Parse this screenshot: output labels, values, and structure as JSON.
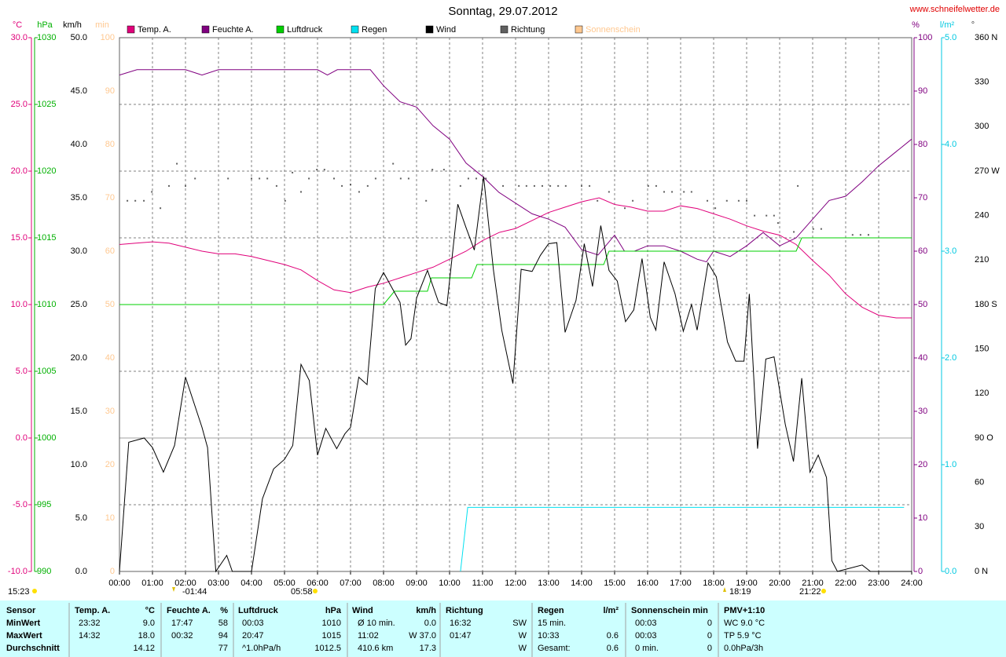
{
  "chart_data": {
    "type": "line",
    "title": "Sonntag, 29.07.2012",
    "source": "www.schneifelwetter.de",
    "xlim": [
      0,
      24
    ],
    "xticks": [
      {
        "value": 0,
        "label": "00:00"
      },
      {
        "value": 1,
        "label": "01:00"
      },
      {
        "value": 2,
        "label": "02:00"
      },
      {
        "value": 3,
        "label": "03:00"
      },
      {
        "value": 4,
        "label": "04:00"
      },
      {
        "value": 5,
        "label": "05:00"
      },
      {
        "value": 6,
        "label": "06:00"
      },
      {
        "value": 7,
        "label": "07:00"
      },
      {
        "value": 8,
        "label": "08:00"
      },
      {
        "value": 9,
        "label": "09:00"
      },
      {
        "value": 10,
        "label": "10:00"
      },
      {
        "value": 11,
        "label": "11:00"
      },
      {
        "value": 12,
        "label": "12:00"
      },
      {
        "value": 13,
        "label": "13:00"
      },
      {
        "value": 14,
        "label": "14:00"
      },
      {
        "value": 15,
        "label": "15:00"
      },
      {
        "value": 16,
        "label": "16:00"
      },
      {
        "value": 17,
        "label": "17:00"
      },
      {
        "value": 18,
        "label": "18:00"
      },
      {
        "value": 19,
        "label": "19:00"
      },
      {
        "value": 20,
        "label": "20:00"
      },
      {
        "value": 21,
        "label": "21:00"
      },
      {
        "value": 22,
        "label": "22:00"
      },
      {
        "value": 23,
        "label": "23:00"
      },
      {
        "value": 24,
        "label": "24:00"
      }
    ],
    "grid": true,
    "axes": [
      {
        "unit": "°C",
        "color": "#e0007a",
        "lim": [
          -10,
          30
        ],
        "ticks": [
          {
            "value": -10,
            "label": "-10.0"
          },
          {
            "value": -5,
            "label": "-5.0"
          },
          {
            "value": 0,
            "label": "0.0"
          },
          {
            "value": 5,
            "label": "5.0"
          },
          {
            "value": 10,
            "label": "10.0"
          },
          {
            "value": 15,
            "label": "15.0"
          },
          {
            "value": 20,
            "label": "20.0"
          },
          {
            "value": 25,
            "label": "25.0"
          },
          {
            "value": 30,
            "label": "30.0"
          }
        ]
      },
      {
        "unit": "hPa",
        "color": "#00b000",
        "lim": [
          990,
          1030
        ],
        "ticks": [
          990,
          995,
          1000,
          1005,
          1010,
          1015,
          1020,
          1025,
          1030
        ]
      },
      {
        "unit": "km/h",
        "color": "#000000",
        "lim": [
          0,
          50
        ],
        "ticks": [
          {
            "value": 0,
            "label": "0.0"
          },
          {
            "value": 5,
            "label": "5.0"
          },
          {
            "value": 10,
            "label": "10.0"
          },
          {
            "value": 15,
            "label": "15.0"
          },
          {
            "value": 20,
            "label": "20.0"
          },
          {
            "value": 25,
            "label": "25.0"
          },
          {
            "value": 30,
            "label": "30.0"
          },
          {
            "value": 35,
            "label": "35.0"
          },
          {
            "value": 40,
            "label": "40.0"
          },
          {
            "value": 45,
            "label": "45.0"
          },
          {
            "value": 50,
            "label": "50.0"
          }
        ]
      },
      {
        "unit": "min",
        "color": "#ffc890",
        "lim": [
          0,
          100
        ],
        "ticks": [
          0,
          10,
          20,
          30,
          40,
          50,
          60,
          70,
          80,
          90,
          100
        ]
      },
      {
        "unit": "%",
        "color": "#800080",
        "lim": [
          0,
          100
        ],
        "ticks": [
          0,
          10,
          20,
          30,
          40,
          50,
          60,
          70,
          80,
          90,
          100
        ]
      },
      {
        "unit": "l/m²",
        "color": "#00c8e0",
        "lim": [
          0,
          5
        ],
        "ticks": [
          {
            "value": 0,
            "label": "0.0"
          },
          {
            "value": 1,
            "label": "1.0"
          },
          {
            "value": 2,
            "label": "2.0"
          },
          {
            "value": 3,
            "label": "3.0"
          },
          {
            "value": 4,
            "label": "4.0"
          },
          {
            "value": 5,
            "label": "5.0"
          }
        ]
      },
      {
        "unit": "°",
        "color": "#404040",
        "lim": [
          0,
          360
        ],
        "ticks": [
          {
            "value": 0,
            "label": "0 N"
          },
          30,
          60,
          {
            "value": 90,
            "label": "90 O"
          },
          120,
          150,
          {
            "value": 180,
            "label": "180 S"
          },
          210,
          240,
          {
            "value": 270,
            "label": "270 W"
          },
          300,
          330,
          {
            "value": 360,
            "label": "360 N"
          }
        ]
      }
    ],
    "series": [
      {
        "name": "Temp. A.",
        "color": "#e0007a",
        "axis": 0,
        "kind": "line",
        "x": [
          0,
          0.5,
          1,
          1.5,
          2,
          2.5,
          3,
          3.5,
          4,
          4.5,
          5,
          5.5,
          6,
          6.5,
          7,
          7.5,
          8,
          8.5,
          9,
          9.5,
          10,
          10.5,
          11,
          11.5,
          12,
          12.5,
          13,
          13.5,
          14,
          14.53,
          15,
          15.5,
          16,
          16.5,
          17,
          17.5,
          18,
          18.5,
          19,
          19.5,
          20,
          20.5,
          21,
          21.5,
          22,
          22.5,
          23,
          23.53,
          24
        ],
        "values": [
          14.5,
          14.6,
          14.7,
          14.6,
          14.3,
          14.0,
          13.8,
          13.8,
          13.6,
          13.3,
          13.0,
          12.6,
          11.8,
          11.1,
          10.9,
          11.3,
          11.6,
          12.0,
          12.4,
          12.8,
          13.4,
          14.0,
          14.8,
          15.4,
          15.7,
          16.3,
          16.9,
          17.3,
          17.7,
          18.0,
          17.5,
          17.3,
          17.0,
          17.0,
          17.4,
          17.2,
          16.8,
          16.4,
          15.9,
          15.5,
          15.2,
          14.5,
          13.3,
          12.2,
          10.8,
          9.8,
          9.2,
          9.0,
          9.0
        ]
      },
      {
        "name": "Feuchte A.",
        "color": "#800080",
        "axis": 4,
        "kind": "line",
        "x": [
          0,
          0.53,
          1,
          2,
          2.5,
          3,
          4,
          5,
          6,
          6.3,
          6.6,
          7,
          7.6,
          8,
          8.5,
          9,
          9.5,
          10,
          10.5,
          11,
          11.5,
          12,
          12.5,
          13,
          13.5,
          14,
          14.5,
          15,
          15.3,
          15.6,
          16,
          16.5,
          17,
          17.5,
          17.78,
          18,
          18.5,
          19,
          19.5,
          20,
          20.5,
          21,
          21.5,
          22,
          22.5,
          23,
          23.5,
          24
        ],
        "values": [
          93,
          94,
          94,
          94,
          93,
          94,
          94,
          94,
          94,
          93,
          94,
          94,
          94,
          91,
          88,
          87,
          83.5,
          81,
          76.5,
          74,
          71,
          69,
          67,
          66,
          64.5,
          60.3,
          59.3,
          63,
          60,
          60,
          61,
          61,
          60,
          58.5,
          58,
          60,
          59,
          61,
          63.5,
          61,
          62.5,
          66,
          69.5,
          70.3,
          73,
          76,
          78.5,
          81
        ]
      },
      {
        "name": "Luftdruck",
        "color": "#00d000",
        "axis": 1,
        "kind": "line",
        "x": [
          0,
          8,
          8.33,
          9.33,
          9.45,
          10.67,
          10.83,
          14.67,
          14.83,
          20.5,
          20.67,
          24
        ],
        "values": [
          1010,
          1010,
          1011,
          1011,
          1012,
          1012,
          1013,
          1013,
          1014,
          1014,
          1015,
          1015
        ]
      },
      {
        "name": "Regen",
        "color": "#00e0f0",
        "axis": 5,
        "kind": "line",
        "x": [
          10.33,
          10.55,
          23.77
        ],
        "values": [
          0,
          0.6,
          0.6
        ]
      },
      {
        "name": "Wind",
        "color": "#000000",
        "axis": 2,
        "kind": "line",
        "x": [
          0,
          0.28,
          0.75,
          1,
          1.33,
          1.67,
          2,
          2.5,
          2.67,
          2.92,
          3.25,
          3.42,
          4,
          4.33,
          4.67,
          5,
          5.25,
          5.5,
          5.75,
          6,
          6.25,
          6.58,
          6.83,
          7,
          7.25,
          7.5,
          7.75,
          8,
          8.5,
          8.67,
          8.83,
          9,
          9.33,
          9.67,
          9.92,
          10.25,
          10.5,
          10.75,
          11.03,
          11.33,
          11.58,
          11.92,
          12.17,
          12.5,
          12.75,
          13,
          13.25,
          13.5,
          13.83,
          14.08,
          14.33,
          14.58,
          14.83,
          15.08,
          15.33,
          15.58,
          15.83,
          16.08,
          16.25,
          16.5,
          16.83,
          17.08,
          17.33,
          17.5,
          17.83,
          18.08,
          18.42,
          18.67,
          18.92,
          19.08,
          19.33,
          19.58,
          19.83,
          20.17,
          20.42,
          20.67,
          20.92,
          21.17,
          21.42,
          21.58,
          21.75,
          22.5,
          22.75,
          24
        ],
        "values": [
          0,
          12.1,
          12.5,
          11.6,
          9.3,
          11.8,
          18.2,
          13.5,
          11.6,
          0,
          1.5,
          0,
          0,
          6.8,
          9.6,
          10.5,
          11.8,
          19.4,
          17.9,
          10.9,
          13.4,
          11.5,
          12.9,
          13.5,
          18.2,
          17.5,
          26.5,
          28.0,
          25.2,
          21.2,
          21.8,
          25.6,
          28.2,
          25.2,
          24.9,
          34.4,
          32.2,
          30.1,
          37.0,
          28.2,
          22.6,
          17.6,
          28.3,
          28.1,
          29.6,
          30.7,
          30.8,
          22.4,
          25.4,
          30.7,
          26.7,
          32.4,
          28.2,
          27.2,
          23.4,
          24.5,
          29.3,
          23.8,
          22.6,
          29.0,
          26.0,
          22.5,
          25.0,
          22.6,
          28.9,
          27.6,
          21.5,
          19.7,
          19.7,
          26.0,
          11.5,
          19.9,
          20.1,
          13.8,
          10.3,
          18.1,
          9.3,
          10.9,
          8.8,
          1.0,
          0,
          0.6,
          0,
          0
        ]
      },
      {
        "name": "Richtung",
        "color": "#606060",
        "axis": 6,
        "kind": "dots",
        "x": [
          0.24,
          0.48,
          0.74,
          0.98,
          1.24,
          1.5,
          1.74,
          2.0,
          2.29,
          3.29,
          4.0,
          4.24,
          4.48,
          4.76,
          5.02,
          5.24,
          5.5,
          5.74,
          5.98,
          6.21,
          6.5,
          6.74,
          7.0,
          7.26,
          7.52,
          7.76,
          8.29,
          8.52,
          8.76,
          9.29,
          9.48,
          9.83,
          10.33,
          10.57,
          10.81,
          11.1,
          11.62,
          12.1,
          12.33,
          12.57,
          12.81,
          13.05,
          13.29,
          13.52,
          14.0,
          14.24,
          14.48,
          14.83,
          15.31,
          15.55,
          16.02,
          16.26,
          16.5,
          16.74,
          17.1,
          17.33,
          17.81,
          18.05,
          18.4,
          18.76,
          19.0,
          19.24,
          19.6,
          19.83,
          19.95,
          20.43,
          20.55,
          21.02,
          21.26,
          22.21,
          22.45,
          22.69
        ],
        "values": [
          250,
          250,
          250,
          256,
          245,
          260,
          275,
          260,
          265,
          265,
          265,
          265,
          265,
          260,
          250,
          269,
          256,
          265,
          271,
          271,
          265,
          260,
          261,
          256,
          260,
          265,
          275,
          265,
          265,
          250,
          271,
          271,
          260,
          265,
          265,
          265,
          260,
          260,
          260,
          260,
          260,
          260,
          260,
          260,
          260,
          260,
          250,
          256,
          245,
          250,
          260,
          260,
          256,
          256,
          256,
          256,
          250,
          245,
          250,
          250,
          250,
          240,
          240,
          240,
          235,
          229,
          260,
          231,
          231,
          227,
          227,
          227
        ]
      },
      {
        "name": "Sonnenschein",
        "color": "#ffc890",
        "axis": 3,
        "kind": "line",
        "x": [],
        "values": []
      }
    ],
    "annotations": [
      "15:23",
      "-01:44",
      "05:58",
      "18:19",
      "21:22"
    ]
  },
  "table": {
    "header": [
      "Sensor",
      "Temp. A.",
      "°C",
      "Feuchte A.",
      "%",
      "Luftdruck",
      "hPa",
      "Wind",
      "km/h",
      "Richtung",
      "Regen",
      "l/m²",
      "Sonnenschein min",
      "PMV+1:10"
    ],
    "rows": [
      [
        "MinWert",
        "23:32",
        "9.0",
        "17:47",
        "58",
        "00:03",
        "1010",
        "Ø 10 min.",
        "0.0",
        "16:32",
        "SW",
        "15 min.",
        null,
        "00:03",
        "0",
        "WC 9.0 °C"
      ],
      [
        "MaxWert",
        "14:32",
        "18.0",
        "00:32",
        "94",
        "20:47",
        "1015",
        "11:02",
        "W 37.0",
        "01:47",
        "W",
        "10:33",
        "0.6",
        "00:03",
        "0",
        "TP 5.9 °C"
      ],
      [
        "Durchschnitt",
        null,
        "14.12",
        null,
        "77",
        "^1.0hPa/h",
        "1012.5",
        "410.6 km",
        "17.3",
        null,
        "W",
        "Gesamt:",
        "0.6",
        "0 min.",
        "0",
        "0.0hPa/3h"
      ]
    ]
  }
}
